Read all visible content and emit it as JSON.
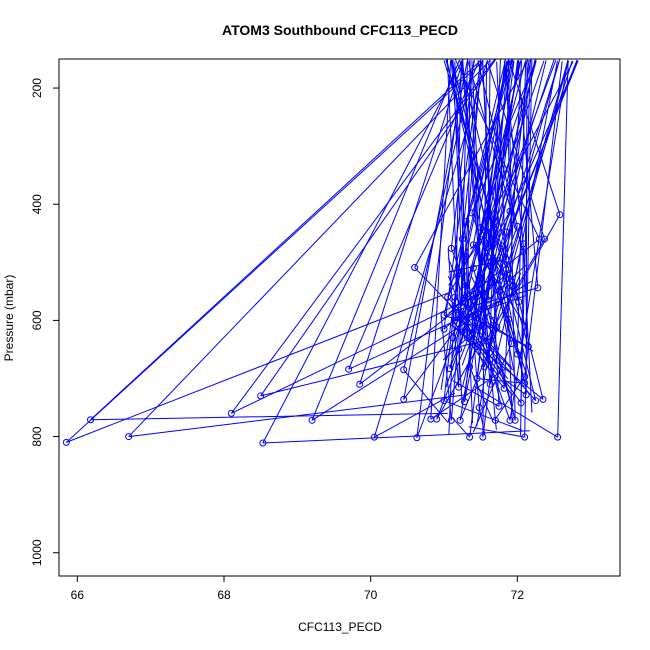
{
  "chart_data": {
    "type": "scatter",
    "title": "ATOM3 Southbound CFC113_PECD",
    "xlabel": "CFC113_PECD",
    "ylabel": "Pressure (mbar)",
    "xlim": [
      65.75,
      73.4
    ],
    "ylim": [
      1040,
      150
    ],
    "y_reversed": true,
    "xticks": [
      66,
      68,
      70,
      72
    ],
    "yticks": [
      200,
      400,
      600,
      800,
      1000
    ],
    "grid": false,
    "color": "#0000ff",
    "line_style": "connected points (profile segments)",
    "marker": "open circle",
    "series": [
      {
        "values": [
          [
            65.85,
            810
          ],
          [
            66.18,
            771
          ],
          [
            66.7,
            800
          ],
          [
            68.1,
            760
          ],
          [
            68.5,
            730
          ],
          [
            68.53,
            811
          ],
          [
            69.2,
            772
          ],
          [
            69.7,
            684
          ],
          [
            69.85,
            710
          ],
          [
            70.05,
            801
          ],
          [
            70.45,
            685
          ],
          [
            70.45,
            736
          ],
          [
            70.6,
            509
          ],
          [
            70.63,
            802
          ],
          [
            70.82,
            770
          ],
          [
            70.9,
            770
          ],
          [
            71.0,
            591
          ],
          [
            71.0,
            615
          ],
          [
            71.0,
            738
          ],
          [
            71.05,
            560
          ],
          [
            71.08,
            683
          ],
          [
            71.1,
            476
          ],
          [
            71.1,
            772
          ],
          [
            71.12,
            630
          ],
          [
            71.15,
            560
          ],
          [
            71.15,
            600
          ],
          [
            71.2,
            590
          ],
          [
            71.2,
            650
          ],
          [
            71.2,
            715
          ],
          [
            71.22,
            772
          ],
          [
            71.25,
            460
          ],
          [
            71.25,
            520
          ],
          [
            71.25,
            620
          ],
          [
            71.28,
            740
          ],
          [
            71.3,
            430
          ],
          [
            71.3,
            490
          ],
          [
            71.3,
            540
          ],
          [
            71.3,
            570
          ],
          [
            71.32,
            630
          ],
          [
            71.35,
            680
          ],
          [
            71.35,
            801
          ],
          [
            71.38,
            415
          ],
          [
            71.4,
            470
          ],
          [
            71.4,
            510
          ],
          [
            71.4,
            555
          ],
          [
            71.42,
            590
          ],
          [
            71.45,
            645
          ],
          [
            71.45,
            700
          ],
          [
            71.48,
            750
          ],
          [
            71.5,
            440
          ],
          [
            71.5,
            460
          ],
          [
            71.5,
            530
          ],
          [
            71.52,
            575
          ],
          [
            71.53,
            801
          ],
          [
            71.55,
            610
          ],
          [
            71.55,
            680
          ],
          [
            71.6,
            420
          ],
          [
            71.6,
            500
          ],
          [
            71.6,
            565
          ],
          [
            71.62,
            655
          ],
          [
            71.63,
            710
          ],
          [
            71.65,
            450
          ],
          [
            71.65,
            535
          ],
          [
            71.68,
            600
          ],
          [
            71.7,
            430
          ],
          [
            71.7,
            772
          ],
          [
            71.72,
            612
          ],
          [
            71.75,
            550
          ],
          [
            71.75,
            748
          ],
          [
            71.8,
            472
          ],
          [
            71.82,
            717
          ],
          [
            71.85,
            448
          ],
          [
            71.85,
            495
          ],
          [
            71.88,
            598
          ],
          [
            71.9,
            412
          ],
          [
            71.9,
            772
          ],
          [
            71.92,
            640
          ],
          [
            71.95,
            540
          ],
          [
            71.97,
            772
          ],
          [
            72.0,
            438
          ],
          [
            72.0,
            658
          ],
          [
            72.02,
            568
          ],
          [
            72.05,
            742
          ],
          [
            72.08,
            468
          ],
          [
            72.08,
            482
          ],
          [
            72.1,
            697
          ],
          [
            72.1,
            708
          ],
          [
            72.1,
            801
          ],
          [
            72.12,
            728
          ],
          [
            72.15,
            645
          ],
          [
            72.25,
            738
          ],
          [
            72.28,
            544
          ],
          [
            72.3,
            460
          ],
          [
            72.35,
            736
          ],
          [
            72.37,
            460
          ],
          [
            72.55,
            801
          ],
          [
            72.58,
            418
          ]
        ]
      }
    ]
  }
}
